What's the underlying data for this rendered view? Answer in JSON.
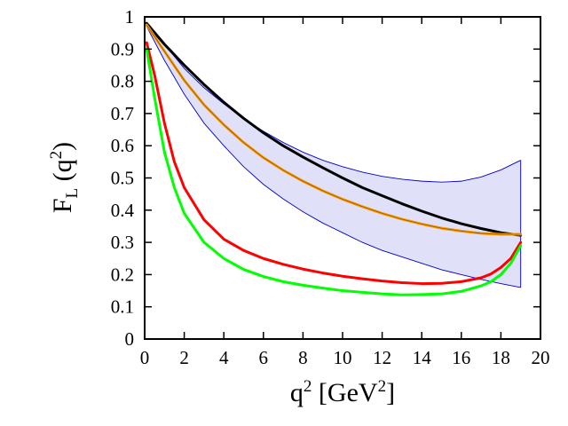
{
  "chart_data": {
    "type": "line",
    "title": "",
    "xlabel": {
      "base": "q",
      "sup": "2",
      "unit_open": " [GeV",
      "unit_sup": "2",
      "unit_close": "]"
    },
    "ylabel": {
      "base": "F",
      "sub": "L",
      "arg_open": " (q",
      "arg_sup": "2",
      "arg_close": ")"
    },
    "xlim": [
      0,
      20
    ],
    "ylim": [
      0,
      1
    ],
    "x_ticks": [
      "0",
      "2",
      "4",
      "6",
      "8",
      "10",
      "12",
      "14",
      "16",
      "18",
      "20"
    ],
    "y_ticks": [
      "0",
      "0.1",
      "0.2",
      "0.3",
      "0.4",
      "0.5",
      "0.6",
      "0.7",
      "0.8",
      "0.9",
      "1"
    ],
    "grid": false,
    "band": {
      "name": "uncertainty band",
      "color": "#e0e0f8",
      "edge_color": "#0000cc",
      "x": [
        0.1,
        1,
        2,
        3,
        4,
        5,
        6,
        7,
        8,
        9,
        10,
        11,
        12,
        13,
        14,
        15,
        16,
        17,
        18,
        19
      ],
      "upper": [
        0.98,
        0.915,
        0.84,
        0.78,
        0.73,
        0.684,
        0.645,
        0.61,
        0.58,
        0.555,
        0.535,
        0.518,
        0.505,
        0.496,
        0.49,
        0.487,
        0.49,
        0.503,
        0.525,
        0.555
      ],
      "lower": [
        0.97,
        0.865,
        0.76,
        0.67,
        0.6,
        0.535,
        0.48,
        0.435,
        0.395,
        0.36,
        0.33,
        0.3,
        0.275,
        0.255,
        0.235,
        0.215,
        0.2,
        0.185,
        0.172,
        0.16
      ]
    },
    "series": [
      {
        "name": "black",
        "color": "#000000",
        "x": [
          0.1,
          1,
          2,
          3,
          4,
          5,
          6,
          7,
          8,
          9,
          10,
          11,
          12,
          13,
          14,
          15,
          16,
          17,
          18,
          19
        ],
        "values": [
          0.98,
          0.915,
          0.85,
          0.79,
          0.735,
          0.685,
          0.64,
          0.6,
          0.565,
          0.532,
          0.5,
          0.47,
          0.445,
          0.42,
          0.397,
          0.376,
          0.358,
          0.343,
          0.33,
          0.322
        ]
      },
      {
        "name": "orange",
        "color": "#ff9900",
        "x": [
          0.1,
          1,
          2,
          3,
          4,
          5,
          6,
          7,
          8,
          9,
          10,
          11,
          12,
          13,
          14,
          15,
          16,
          17,
          18,
          19
        ],
        "values": [
          0.975,
          0.893,
          0.803,
          0.727,
          0.665,
          0.61,
          0.563,
          0.524,
          0.49,
          0.46,
          0.434,
          0.411,
          0.39,
          0.372,
          0.357,
          0.344,
          0.335,
          0.328,
          0.325,
          0.325
        ]
      },
      {
        "name": "red",
        "color": "#ff0000",
        "x": [
          0.1,
          0.5,
          1,
          1.5,
          2,
          3,
          4,
          5,
          6,
          7,
          8,
          9,
          10,
          11,
          12,
          13,
          14,
          15,
          16,
          17,
          17.5,
          18,
          18.5,
          19
        ],
        "values": [
          0.92,
          0.82,
          0.67,
          0.55,
          0.47,
          0.37,
          0.31,
          0.275,
          0.25,
          0.232,
          0.217,
          0.205,
          0.195,
          0.187,
          0.18,
          0.175,
          0.172,
          0.173,
          0.178,
          0.19,
          0.202,
          0.222,
          0.25,
          0.3
        ]
      },
      {
        "name": "green",
        "color": "#00ff00",
        "x": [
          0.1,
          0.5,
          1,
          1.5,
          2,
          3,
          4,
          5,
          6,
          7,
          8,
          9,
          10,
          11,
          12,
          13,
          14,
          15,
          16,
          17,
          17.5,
          18,
          18.5,
          19
        ],
        "values": [
          0.9,
          0.75,
          0.58,
          0.47,
          0.39,
          0.3,
          0.25,
          0.216,
          0.194,
          0.178,
          0.167,
          0.158,
          0.15,
          0.145,
          0.14,
          0.137,
          0.138,
          0.14,
          0.148,
          0.165,
          0.178,
          0.2,
          0.235,
          0.29
        ]
      }
    ]
  }
}
